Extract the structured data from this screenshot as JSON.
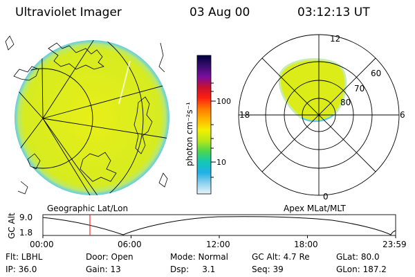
{
  "header": {
    "title": "Ultraviolet Imager",
    "date": "03 Aug 00",
    "time": "03:12:13 UT"
  },
  "colorbar": {
    "unit": "photon cm⁻²s⁻¹",
    "ticks": [
      "100",
      "10"
    ],
    "colors": [
      "#000040",
      "#3a0d6e",
      "#7a0da0",
      "#c8102e",
      "#ff2010",
      "#ff7a00",
      "#ffb400",
      "#f4f000",
      "#b8e818",
      "#4cd64c",
      "#12c8b4",
      "#20b0e6",
      "#8ed2ee",
      "#e8f4f8"
    ]
  },
  "left_panel": {
    "label": "Geographic Lat/Lon"
  },
  "right_panel": {
    "label": "Apex MLat/MLT",
    "mlt_labels": {
      "top": "12",
      "left": "18",
      "right": "6",
      "bottom": "0"
    },
    "lat_labels": [
      "60",
      "70",
      "80"
    ]
  },
  "altitude_plot": {
    "ylabel": "GC Alt",
    "yticks": [
      "9.0",
      "1.8"
    ],
    "xticks": [
      "00:00",
      "06:00",
      "12:00",
      "18:00",
      "23:59"
    ],
    "current_time_hours": 3.2
  },
  "info": {
    "row1": {
      "flt": "Flt: LBHL",
      "door": "Door: Open",
      "mode": "Mode: Normal",
      "gcalt": "GC Alt: 4.7 Re",
      "glat": "GLat: 80.0"
    },
    "row2": {
      "ip": "IP: 36.0",
      "gain": "Gain: 13",
      "dsp": "Dsp:     3.1",
      "seq": "Seq: 39",
      "glon": "GLon: 187.2"
    }
  },
  "colors": {
    "auroral_fill": "#dcec18",
    "limb_fill": "#c8ecb0",
    "limb_blue": "#56c8ee",
    "time_marker": "#ff0000"
  }
}
